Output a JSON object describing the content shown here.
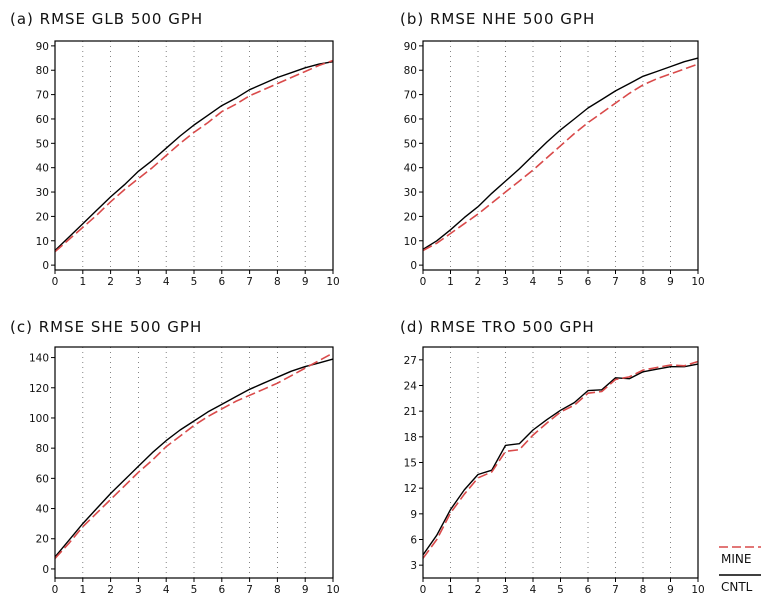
{
  "chart_data": [
    {
      "type": "line",
      "title": "(a) RMSE GLB 500 GPH",
      "xlabel": "",
      "ylabel": "",
      "xlim": [
        0,
        10
      ],
      "ylim": [
        -2,
        92
      ],
      "x_ticks": [
        0,
        1,
        2,
        3,
        4,
        5,
        6,
        7,
        8,
        9,
        10
      ],
      "y_ticks": [
        0,
        10,
        20,
        30,
        40,
        50,
        60,
        70,
        80,
        90
      ],
      "grid": "dotted-vertical",
      "x": [
        0,
        0.5,
        1,
        1.5,
        2,
        2.5,
        3,
        3.5,
        4,
        4.5,
        5,
        5.5,
        6,
        6.5,
        7,
        7.5,
        8,
        8.5,
        9,
        9.5,
        10
      ],
      "series": [
        {
          "name": "CNTL",
          "color": "#000000",
          "dash": "solid",
          "values": [
            6,
            11.5,
            17,
            22.5,
            28,
            33,
            38.5,
            43,
            48,
            53,
            57.5,
            61.5,
            65.5,
            68.5,
            72,
            74.5,
            77,
            79,
            81,
            82.5,
            83.5
          ]
        },
        {
          "name": "MINE",
          "color": "#d94a4a",
          "dash": "dashed",
          "values": [
            5.5,
            10.5,
            15.5,
            20.5,
            26,
            31,
            35.5,
            40,
            45,
            50,
            54.5,
            58.5,
            63,
            66,
            69.5,
            72,
            74.5,
            77,
            79.5,
            82,
            84
          ]
        }
      ]
    },
    {
      "type": "line",
      "title": "(b) RMSE NHE 500 GPH",
      "xlabel": "",
      "ylabel": "",
      "xlim": [
        0,
        10
      ],
      "ylim": [
        -2,
        92
      ],
      "x_ticks": [
        0,
        1,
        2,
        3,
        4,
        5,
        6,
        7,
        8,
        9,
        10
      ],
      "y_ticks": [
        0,
        10,
        20,
        30,
        40,
        50,
        60,
        70,
        80,
        90
      ],
      "grid": "dotted-vertical",
      "x": [
        0,
        0.5,
        1,
        1.5,
        2,
        2.5,
        3,
        3.5,
        4,
        4.5,
        5,
        5.5,
        6,
        6.5,
        7,
        7.5,
        8,
        8.5,
        9,
        9.5,
        10
      ],
      "series": [
        {
          "name": "CNTL",
          "color": "#000000",
          "dash": "solid",
          "values": [
            6.5,
            10,
            14.5,
            19.5,
            24,
            29.5,
            34.5,
            39.5,
            45,
            50.5,
            55.5,
            60,
            64.5,
            68,
            71.5,
            74.5,
            77.5,
            79.5,
            81.5,
            83.5,
            85
          ]
        },
        {
          "name": "MINE",
          "color": "#d94a4a",
          "dash": "dashed",
          "values": [
            6,
            9,
            13,
            17,
            21,
            25.5,
            30,
            34.5,
            39,
            44,
            49,
            54,
            58.5,
            62.5,
            66.5,
            70.5,
            74,
            76.5,
            78.5,
            80.5,
            82.5
          ]
        }
      ]
    },
    {
      "type": "line",
      "title": "(c) RMSE SHE 500 GPH",
      "xlabel": "",
      "ylabel": "",
      "xlim": [
        0,
        10
      ],
      "ylim": [
        -6,
        147
      ],
      "x_ticks": [
        0,
        1,
        2,
        3,
        4,
        5,
        6,
        7,
        8,
        9,
        10
      ],
      "y_ticks": [
        0,
        20,
        40,
        60,
        80,
        100,
        120,
        140
      ],
      "grid": "dotted-vertical",
      "x": [
        0,
        0.5,
        1,
        1.5,
        2,
        2.5,
        3,
        3.5,
        4,
        4.5,
        5,
        5.5,
        6,
        6.5,
        7,
        7.5,
        8,
        8.5,
        9,
        9.5,
        10
      ],
      "series": [
        {
          "name": "CNTL",
          "color": "#000000",
          "dash": "solid",
          "values": [
            8,
            19,
            30,
            40,
            50,
            59,
            68,
            77,
            85,
            92,
            98,
            104,
            109,
            114,
            119,
            123,
            127,
            131,
            134,
            136.5,
            139
          ]
        },
        {
          "name": "MINE",
          "color": "#d94a4a",
          "dash": "dashed",
          "values": [
            7,
            17,
            28,
            37,
            46,
            55,
            64,
            72,
            81,
            88,
            95,
            101,
            106,
            111,
            115,
            119,
            123,
            128,
            133,
            138,
            143
          ]
        }
      ]
    },
    {
      "type": "line",
      "title": "(d) RMSE TRO 500 GPH",
      "xlabel": "",
      "ylabel": "",
      "xlim": [
        0,
        10
      ],
      "ylim": [
        1.5,
        28.5
      ],
      "x_ticks": [
        0,
        1,
        2,
        3,
        4,
        5,
        6,
        7,
        8,
        9,
        10
      ],
      "y_ticks": [
        3,
        6,
        9,
        12,
        15,
        18,
        21,
        24,
        27
      ],
      "grid": "dotted-vertical",
      "x": [
        0,
        0.5,
        1,
        1.5,
        2,
        2.5,
        3,
        3.5,
        4,
        4.5,
        5,
        5.5,
        6,
        6.5,
        7,
        7.5,
        8,
        8.5,
        9,
        9.5,
        10
      ],
      "series": [
        {
          "name": "CNTL",
          "color": "#000000",
          "dash": "solid",
          "values": [
            4.2,
            6.5,
            9.5,
            11.8,
            13.6,
            14.1,
            17,
            17.2,
            18.8,
            20,
            21.1,
            22,
            23.4,
            23.5,
            24.9,
            24.8,
            25.6,
            25.9,
            26.2,
            26.2,
            26.5
          ]
        },
        {
          "name": "MINE",
          "color": "#d94a4a",
          "dash": "dashed",
          "values": [
            3.8,
            6,
            9.1,
            11.3,
            13.2,
            13.9,
            16.3,
            16.5,
            18.2,
            19.6,
            20.9,
            21.7,
            23.1,
            23.3,
            24.7,
            25,
            25.8,
            26.1,
            26.4,
            26.3,
            26.8
          ]
        }
      ]
    }
  ],
  "legend": {
    "placement": "bottom-right",
    "entries": [
      {
        "label": "MINE",
        "color": "#d94a4a",
        "dash": "dashed"
      },
      {
        "label": "CNTL",
        "color": "#000000",
        "dash": "solid"
      }
    ]
  }
}
